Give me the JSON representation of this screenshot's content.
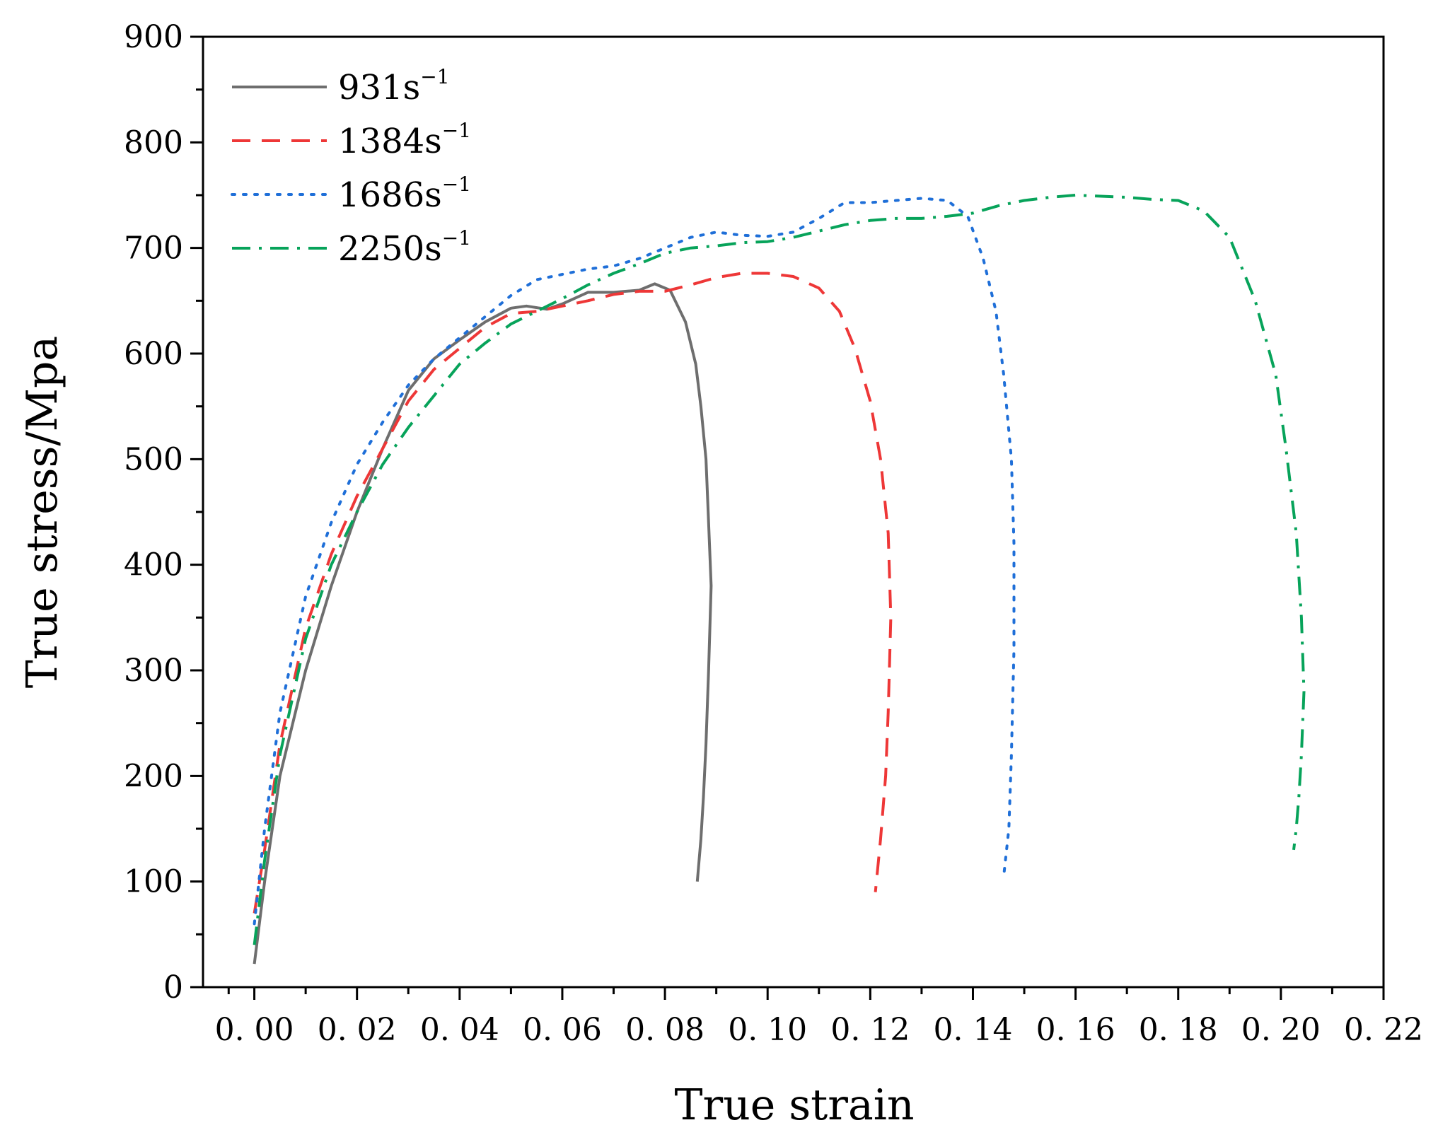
{
  "chart_data": {
    "type": "line",
    "title": "",
    "xlabel": "True strain",
    "ylabel": "True stress/Mpa",
    "xlim": [
      -0.01,
      0.22
    ],
    "ylim": [
      0,
      900
    ],
    "grid": false,
    "legend_position": "top-left",
    "x_ticks": [
      0.0,
      0.02,
      0.04,
      0.06,
      0.08,
      0.1,
      0.12,
      0.14,
      0.16,
      0.18,
      0.2,
      0.22
    ],
    "x_tick_labels": [
      "0. 00",
      "0. 02",
      "0. 04",
      "0. 06",
      "0. 08",
      "0. 10",
      "0. 12",
      "0. 14",
      "0. 16",
      "0. 18",
      "0. 20",
      "0. 22"
    ],
    "y_ticks": [
      0,
      100,
      200,
      300,
      400,
      500,
      600,
      700,
      800,
      900
    ],
    "y_tick_labels": [
      "0",
      "100",
      "200",
      "300",
      "400",
      "500",
      "600",
      "700",
      "800",
      "900"
    ],
    "series": [
      {
        "name": "931",
        "unit": "s",
        "exponent": "−1",
        "color": "#6e6e6e",
        "dash": "solid",
        "x": [
          0.0,
          0.002,
          0.005,
          0.01,
          0.015,
          0.02,
          0.025,
          0.03,
          0.035,
          0.04,
          0.045,
          0.05,
          0.053,
          0.057,
          0.06,
          0.065,
          0.07,
          0.075,
          0.078,
          0.081,
          0.084,
          0.086,
          0.087,
          0.088,
          0.0885,
          0.089,
          0.0885,
          0.088,
          0.0875,
          0.087,
          0.0863
        ],
        "y": [
          22,
          100,
          200,
          300,
          380,
          450,
          510,
          565,
          595,
          613,
          630,
          643,
          645,
          642,
          647,
          658,
          658,
          660,
          666,
          660,
          630,
          590,
          550,
          500,
          440,
          380,
          300,
          230,
          180,
          140,
          100
        ]
      },
      {
        "name": "1384",
        "unit": "s",
        "exponent": "−1",
        "color": "#ee3737",
        "dash": "dashed",
        "x": [
          0.0,
          0.002,
          0.005,
          0.01,
          0.015,
          0.02,
          0.025,
          0.03,
          0.035,
          0.04,
          0.045,
          0.05,
          0.055,
          0.06,
          0.065,
          0.07,
          0.075,
          0.08,
          0.085,
          0.09,
          0.095,
          0.1,
          0.105,
          0.11,
          0.114,
          0.117,
          0.12,
          0.122,
          0.1235,
          0.124,
          0.1235,
          0.123,
          0.122,
          0.121
        ],
        "y": [
          70,
          130,
          230,
          340,
          410,
          465,
          510,
          555,
          585,
          605,
          625,
          638,
          640,
          645,
          650,
          656,
          659,
          659,
          665,
          672,
          676,
          676,
          673,
          662,
          640,
          605,
          555,
          500,
          430,
          350,
          260,
          200,
          140,
          90
        ]
      },
      {
        "name": "1686",
        "unit": "s",
        "exponent": "−1",
        "color": "#1f6fd8",
        "dash": "dotted",
        "x": [
          0.0,
          0.002,
          0.005,
          0.01,
          0.015,
          0.02,
          0.025,
          0.03,
          0.035,
          0.04,
          0.045,
          0.05,
          0.055,
          0.06,
          0.065,
          0.07,
          0.075,
          0.08,
          0.085,
          0.09,
          0.095,
          0.1,
          0.105,
          0.11,
          0.115,
          0.12,
          0.125,
          0.13,
          0.135,
          0.139,
          0.142,
          0.1445,
          0.146,
          0.1475,
          0.148,
          0.148,
          0.1475,
          0.147,
          0.146
        ],
        "y": [
          60,
          150,
          260,
          370,
          440,
          495,
          535,
          570,
          595,
          615,
          635,
          655,
          670,
          675,
          680,
          683,
          690,
          700,
          710,
          715,
          712,
          711,
          715,
          728,
          743,
          743,
          745,
          747,
          745,
          730,
          690,
          640,
          580,
          500,
          420,
          320,
          220,
          150,
          105
        ]
      },
      {
        "name": "2250",
        "unit": "s",
        "exponent": "−1",
        "color": "#07a35a",
        "dash": "dashdot",
        "x": [
          0.0,
          0.002,
          0.005,
          0.01,
          0.015,
          0.02,
          0.025,
          0.03,
          0.035,
          0.04,
          0.045,
          0.05,
          0.055,
          0.06,
          0.065,
          0.07,
          0.075,
          0.08,
          0.085,
          0.09,
          0.095,
          0.1,
          0.105,
          0.11,
          0.115,
          0.12,
          0.125,
          0.13,
          0.135,
          0.14,
          0.145,
          0.15,
          0.155,
          0.16,
          0.165,
          0.17,
          0.175,
          0.18,
          0.185,
          0.19,
          0.195,
          0.199,
          0.201,
          0.203,
          0.204,
          0.2045,
          0.204,
          0.2035,
          0.203,
          0.2025
        ],
        "y": [
          40,
          120,
          220,
          330,
          400,
          450,
          495,
          530,
          560,
          590,
          610,
          628,
          640,
          652,
          665,
          676,
          685,
          695,
          700,
          702,
          705,
          706,
          710,
          716,
          722,
          726,
          728,
          728,
          730,
          733,
          740,
          745,
          748,
          750,
          749,
          748,
          746,
          745,
          735,
          710,
          650,
          580,
          510,
          430,
          350,
          280,
          220,
          180,
          150,
          130
        ]
      }
    ]
  }
}
